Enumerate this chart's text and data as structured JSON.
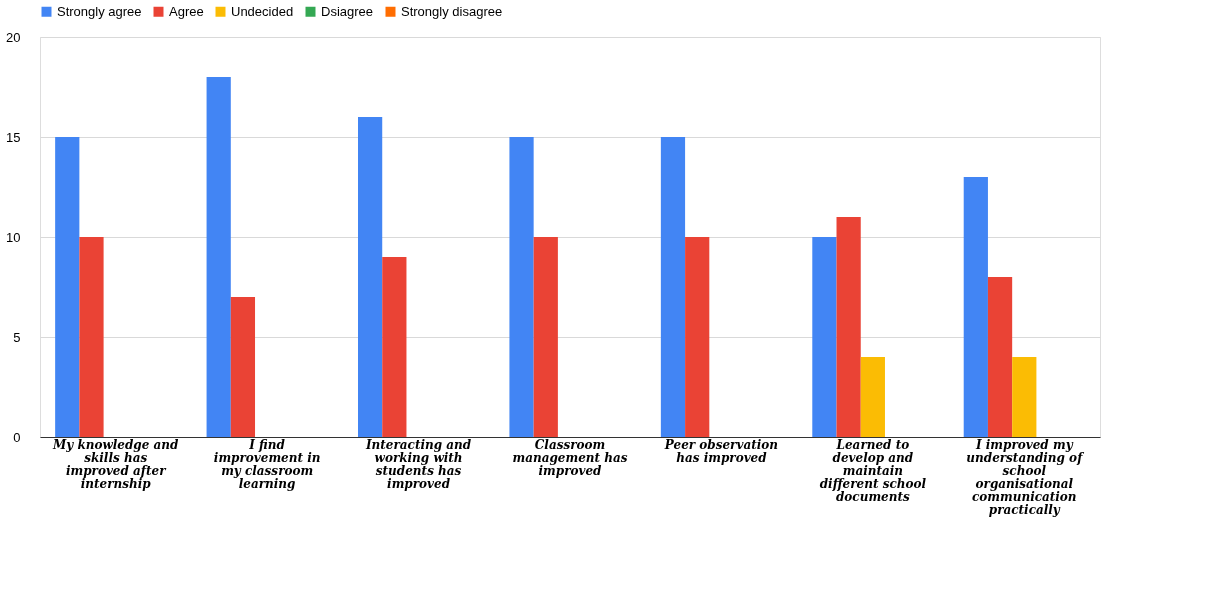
{
  "chart_data": {
    "type": "bar",
    "categories": [
      "My knowledge and skills has improved after internship",
      "I find improvement in my classroom learning",
      "Interacting and working with students has improved",
      "Classroom management has improved",
      "Peer observation has improved",
      "Learned to develop and maintain different school documents",
      "I improved my understanding of school organisational communication practically"
    ],
    "series": [
      {
        "name": "Strongly agree",
        "color": "#4285f4",
        "values": [
          15,
          18,
          16,
          15,
          15,
          10,
          13
        ]
      },
      {
        "name": "Agree",
        "color": "#ea4335",
        "values": [
          10,
          7,
          9,
          10,
          10,
          11,
          8
        ]
      },
      {
        "name": "Undecided",
        "color": "#fbbc04",
        "values": [
          0,
          0,
          0,
          0,
          0,
          4,
          4
        ]
      },
      {
        "name": "Dsiagree",
        "color": "#34a853",
        "values": [
          0,
          0,
          0,
          0,
          0,
          0,
          0
        ]
      },
      {
        "name": "Strongly disagree",
        "color": "#ff6d01",
        "values": [
          0,
          0,
          0,
          0,
          0,
          0,
          0
        ]
      }
    ],
    "ylim": [
      0,
      20
    ],
    "yticks": [
      0,
      5,
      10,
      15,
      20
    ],
    "grid": "y",
    "legend": "top"
  }
}
